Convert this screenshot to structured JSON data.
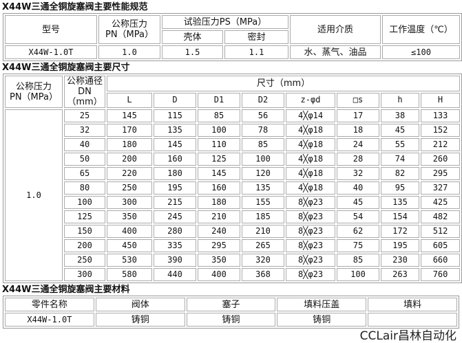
{
  "spec": {
    "title": "X44W三通全铜旋塞阀主要性能规范",
    "h_model": "型号",
    "h_pn1": "公称压力",
    "h_pn2": "PN（MPa）",
    "h_test": "试验压力PS（MPa）",
    "h_shell": "壳体",
    "h_seal": "密封",
    "h_medium": "适用介质",
    "h_temp": "工作温度（℃）",
    "row": {
      "model": "X44W-1.0T",
      "pn": "1.0",
      "shell": "1.5",
      "seal": "1.1",
      "medium": "水、蒸气、油品",
      "temp": "≤100"
    }
  },
  "dims": {
    "title": "X44W三通全铜旋塞阀主要尺寸",
    "h_pn1": "公称压力",
    "h_pn2": "PN（MPa）",
    "h_dn1": "公称通径",
    "h_dn2": "DN（mm）",
    "h_size": "尺寸（mm）",
    "cols": [
      "L",
      "D",
      "D1",
      "D2",
      "z-φd",
      "□s",
      "h",
      "H"
    ],
    "pn": "1.0",
    "rows": [
      [
        "25",
        "145",
        "115",
        "85",
        "56",
        "4╳φ14",
        "17",
        "38",
        "133"
      ],
      [
        "32",
        "170",
        "135",
        "100",
        "78",
        "4╳φ18",
        "18",
        "45",
        "152"
      ],
      [
        "40",
        "180",
        "145",
        "110",
        "85",
        "4╳φ18",
        "24",
        "55",
        "212"
      ],
      [
        "50",
        "200",
        "160",
        "125",
        "100",
        "4╳φ18",
        "28",
        "74",
        "260"
      ],
      [
        "65",
        "220",
        "180",
        "145",
        "120",
        "4╳φ18",
        "32",
        "82",
        "295"
      ],
      [
        "80",
        "250",
        "195",
        "160",
        "135",
        "4╳φ18",
        "40",
        "95",
        "327"
      ],
      [
        "100",
        "300",
        "215",
        "180",
        "155",
        "8╳φ23",
        "45",
        "135",
        "425"
      ],
      [
        "125",
        "350",
        "245",
        "210",
        "185",
        "8╳φ23",
        "54",
        "154",
        "482"
      ],
      [
        "150",
        "400",
        "280",
        "240",
        "210",
        "8╳φ23",
        "62",
        "172",
        "512"
      ],
      [
        "200",
        "450",
        "335",
        "295",
        "265",
        "8╳φ23",
        "75",
        "195",
        "605"
      ],
      [
        "250",
        "530",
        "390",
        "350",
        "320",
        "8╳φ23",
        "85",
        "230",
        "660"
      ],
      [
        "300",
        "580",
        "440",
        "400",
        "368",
        "8╳φ23",
        "100",
        "263",
        "760"
      ]
    ]
  },
  "materials": {
    "title": "X44W三通全铜旋塞阀主要材料",
    "headers": [
      "零件名称",
      "阀体",
      "塞子",
      "填料压盖",
      "填料"
    ],
    "row": [
      "X44W-1.0T",
      "铸铜",
      "铸铜",
      "铸铜",
      ""
    ]
  },
  "watermark": "CCLair昌林自动化"
}
